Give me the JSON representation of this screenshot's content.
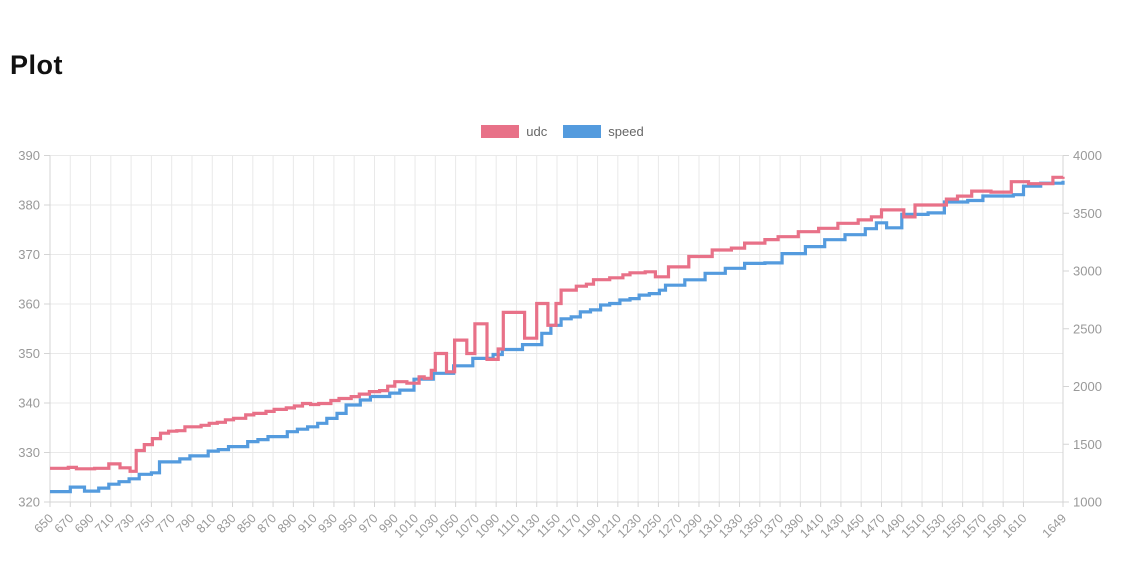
{
  "page": {
    "title": "Plot",
    "background": "#ffffff"
  },
  "legend": {
    "position": "top-center"
  },
  "chart_data": {
    "type": "line",
    "line_style": "step-after",
    "title": "Plot",
    "grid": true,
    "legend_position": "top",
    "colors": {
      "udc": "#e87188",
      "speed": "#549bde",
      "gridline": "#e9e9e9",
      "axis_line": "#d4d4d4",
      "tick_label": "#999999",
      "legend_text": "#666666"
    },
    "x_axis": {
      "range": [
        650,
        1649
      ],
      "tick_labels": [
        "650",
        "670",
        "690",
        "710",
        "730",
        "750",
        "770",
        "790",
        "810",
        "830",
        "850",
        "870",
        "890",
        "910",
        "930",
        "950",
        "970",
        "990",
        "1010",
        "1030",
        "1050",
        "1070",
        "1090",
        "1110",
        "1130",
        "1150",
        "1170",
        "1190",
        "1210",
        "1230",
        "1250",
        "1270",
        "1290",
        "1310",
        "1330",
        "1350",
        "1370",
        "1390",
        "1410",
        "1430",
        "1450",
        "1470",
        "1490",
        "1510",
        "1530",
        "1550",
        "1570",
        "1590",
        "1610",
        "1649"
      ],
      "label_rotation_deg": -45
    },
    "y_axis_left": {
      "range": [
        320,
        390
      ],
      "tick_labels": [
        "390",
        "380",
        "370",
        "360",
        "350",
        "340",
        "330",
        "320"
      ]
    },
    "y_axis_right": {
      "range": [
        1000,
        4000
      ],
      "tick_labels": [
        "4000",
        "3500",
        "3000",
        "2500",
        "2000",
        "1500",
        "1000"
      ]
    },
    "series": [
      {
        "name": "udc",
        "color": "#e87188",
        "axis": "left",
        "points": [
          [
            650,
            326.8
          ],
          [
            668,
            327.0
          ],
          [
            676,
            326.7
          ],
          [
            694,
            326.8
          ],
          [
            708,
            327.7
          ],
          [
            719,
            326.9
          ],
          [
            729,
            326.2
          ],
          [
            735,
            330.4
          ],
          [
            743,
            331.6
          ],
          [
            751,
            332.8
          ],
          [
            759,
            333.9
          ],
          [
            767,
            334.3
          ],
          [
            775,
            334.4
          ],
          [
            783,
            335.2
          ],
          [
            799,
            335.5
          ],
          [
            807,
            335.9
          ],
          [
            815,
            336.1
          ],
          [
            823,
            336.6
          ],
          [
            831,
            336.9
          ],
          [
            843,
            337.6
          ],
          [
            851,
            337.9
          ],
          [
            863,
            338.3
          ],
          [
            871,
            338.7
          ],
          [
            883,
            339.0
          ],
          [
            891,
            339.4
          ],
          [
            899,
            339.9
          ],
          [
            907,
            339.7
          ],
          [
            915,
            339.9
          ],
          [
            927,
            340.5
          ],
          [
            935,
            340.9
          ],
          [
            947,
            341.3
          ],
          [
            955,
            341.8
          ],
          [
            965,
            342.3
          ],
          [
            975,
            342.5
          ],
          [
            983,
            343.4
          ],
          [
            990,
            344.3
          ],
          [
            1002,
            344.0
          ],
          [
            1014,
            345.3
          ],
          [
            1019,
            345.0
          ],
          [
            1026,
            346.6
          ],
          [
            1030,
            350.0
          ],
          [
            1041,
            346.3
          ],
          [
            1049,
            352.7
          ],
          [
            1061,
            350.0
          ],
          [
            1069,
            356.0
          ],
          [
            1081,
            348.8
          ],
          [
            1092,
            350.9
          ],
          [
            1097,
            358.3
          ],
          [
            1118,
            353.1
          ],
          [
            1130,
            360.1
          ],
          [
            1141,
            355.7
          ],
          [
            1149,
            360.1
          ],
          [
            1154,
            362.8
          ],
          [
            1169,
            363.6
          ],
          [
            1179,
            364.0
          ],
          [
            1186,
            364.9
          ],
          [
            1202,
            365.3
          ],
          [
            1215,
            365.9
          ],
          [
            1222,
            366.3
          ],
          [
            1237,
            366.5
          ],
          [
            1247,
            365.5
          ],
          [
            1260,
            367.5
          ],
          [
            1280,
            369.6
          ],
          [
            1303,
            370.9
          ],
          [
            1322,
            371.3
          ],
          [
            1335,
            372.3
          ],
          [
            1355,
            373.0
          ],
          [
            1368,
            373.6
          ],
          [
            1388,
            374.6
          ],
          [
            1408,
            375.3
          ],
          [
            1427,
            376.3
          ],
          [
            1447,
            377.0
          ],
          [
            1460,
            377.6
          ],
          [
            1470,
            379.0
          ],
          [
            1492,
            377.6
          ],
          [
            1503,
            380.0
          ],
          [
            1534,
            381.2
          ],
          [
            1545,
            381.8
          ],
          [
            1559,
            382.8
          ],
          [
            1578,
            382.6
          ],
          [
            1598,
            384.7
          ],
          [
            1615,
            384.3
          ],
          [
            1639,
            385.6
          ],
          [
            1649,
            385.7
          ]
        ]
      },
      {
        "name": "speed",
        "color": "#549bde",
        "axis": "right",
        "points": [
          [
            650,
            1090
          ],
          [
            670,
            1129
          ],
          [
            684,
            1094
          ],
          [
            698,
            1120
          ],
          [
            708,
            1154
          ],
          [
            718,
            1176
          ],
          [
            728,
            1201
          ],
          [
            738,
            1240
          ],
          [
            750,
            1253
          ],
          [
            758,
            1347
          ],
          [
            778,
            1373
          ],
          [
            788,
            1399
          ],
          [
            806,
            1441
          ],
          [
            816,
            1454
          ],
          [
            826,
            1480
          ],
          [
            845,
            1523
          ],
          [
            855,
            1540
          ],
          [
            865,
            1566
          ],
          [
            884,
            1609
          ],
          [
            894,
            1630
          ],
          [
            904,
            1651
          ],
          [
            914,
            1681
          ],
          [
            923,
            1724
          ],
          [
            933,
            1767
          ],
          [
            942,
            1840
          ],
          [
            956,
            1883
          ],
          [
            966,
            1913
          ],
          [
            985,
            1943
          ],
          [
            995,
            1969
          ],
          [
            1009,
            2063
          ],
          [
            1028,
            2114
          ],
          [
            1048,
            2179
          ],
          [
            1067,
            2243
          ],
          [
            1087,
            2277
          ],
          [
            1096,
            2320
          ],
          [
            1116,
            2363
          ],
          [
            1135,
            2461
          ],
          [
            1144,
            2530
          ],
          [
            1154,
            2586
          ],
          [
            1164,
            2603
          ],
          [
            1173,
            2646
          ],
          [
            1183,
            2663
          ],
          [
            1193,
            2706
          ],
          [
            1202,
            2719
          ],
          [
            1212,
            2749
          ],
          [
            1222,
            2761
          ],
          [
            1231,
            2791
          ],
          [
            1241,
            2804
          ],
          [
            1251,
            2834
          ],
          [
            1257,
            2877
          ],
          [
            1276,
            2924
          ],
          [
            1296,
            2980
          ],
          [
            1316,
            3023
          ],
          [
            1335,
            3066
          ],
          [
            1355,
            3070
          ],
          [
            1372,
            3151
          ],
          [
            1395,
            3211
          ],
          [
            1414,
            3271
          ],
          [
            1434,
            3314
          ],
          [
            1454,
            3366
          ],
          [
            1465,
            3417
          ],
          [
            1475,
            3374
          ],
          [
            1490,
            3490
          ],
          [
            1516,
            3503
          ],
          [
            1532,
            3597
          ],
          [
            1555,
            3610
          ],
          [
            1570,
            3649
          ],
          [
            1600,
            3661
          ],
          [
            1610,
            3734
          ],
          [
            1627,
            3760
          ],
          [
            1649,
            3781
          ]
        ]
      }
    ]
  }
}
